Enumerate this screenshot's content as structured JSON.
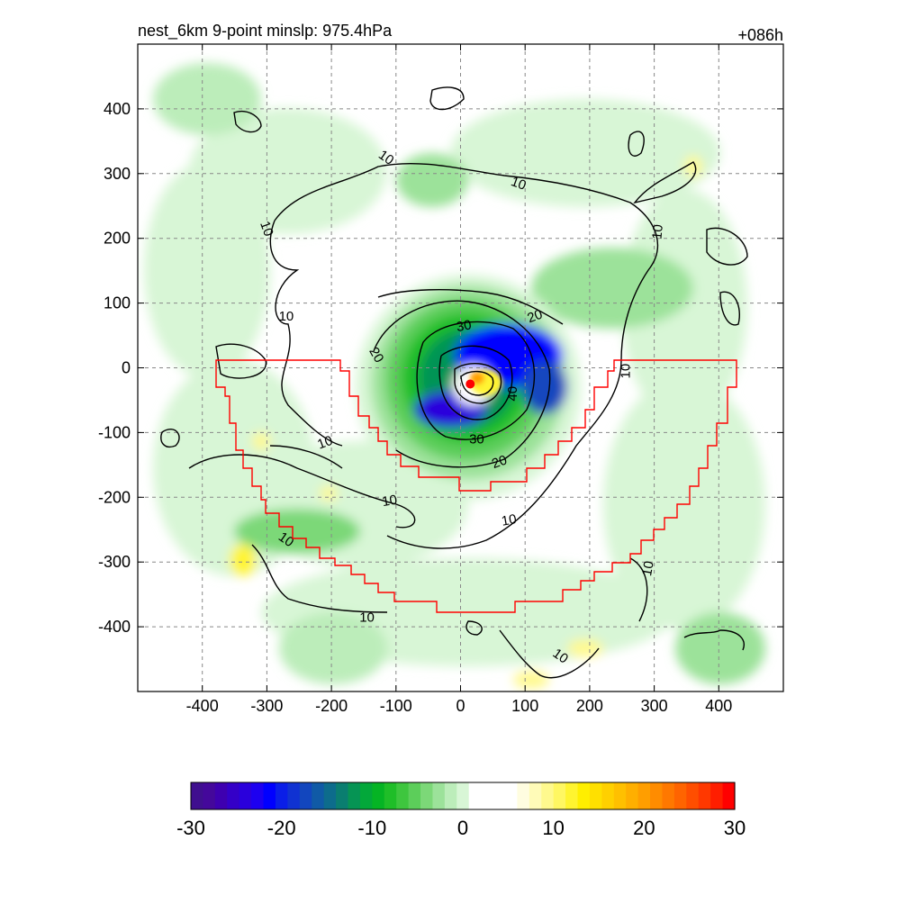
{
  "chart_data": {
    "type": "heatmap",
    "title_left": "nest_6km  9-point minslp: 975.4hPa",
    "title_right": "+086h",
    "xlim": [
      -500,
      500
    ],
    "ylim": [
      -500,
      500
    ],
    "xticks": [
      -400,
      -300,
      -200,
      -100,
      0,
      100,
      200,
      300,
      400
    ],
    "yticks": [
      -400,
      -300,
      -200,
      -100,
      0,
      100,
      200,
      300,
      400
    ],
    "grid": "on",
    "center_marker_color": "#ff0000",
    "storm_center": [
      15,
      -25
    ],
    "colorbar": {
      "min": -30,
      "max": 30,
      "ticks": [
        -30,
        -20,
        -10,
        0,
        10,
        20,
        30
      ],
      "colors": [
        "#3f0f8f",
        "#44089b",
        "#3e00b0",
        "#3400c8",
        "#2a00dc",
        "#1d00f0",
        "#0000ff",
        "#0a1ee8",
        "#1032d2",
        "#1246be",
        "#105aa6",
        "#0d6c8c",
        "#0a7e70",
        "#069454",
        "#03a83a",
        "#05b424",
        "#1fbe28",
        "#3ec63e",
        "#5cce5a",
        "#7cd878",
        "#9ce29a",
        "#bcedba",
        "#d8f6d6",
        "#ffffff",
        "#ffffff",
        "#ffffff",
        "#ffffff",
        "#fffde0",
        "#fffbb8",
        "#fff98e",
        "#fff762",
        "#fff430",
        "#ffef00",
        "#ffe000",
        "#ffd000",
        "#ffc000",
        "#ffaf00",
        "#ff9e00",
        "#ff8c00",
        "#ff7800",
        "#ff6400",
        "#ff4e00",
        "#ff3800",
        "#ff1e00",
        "#ff0000"
      ]
    },
    "contour_labels": [
      {
        "text": "10",
        "x": -115,
        "y": 325,
        "rot": -35
      },
      {
        "text": "10",
        "x": 90,
        "y": 285,
        "rot": -20
      },
      {
        "text": "10",
        "x": -300,
        "y": 215,
        "rot": -70
      },
      {
        "text": "10",
        "x": 305,
        "y": 210,
        "rot": 85
      },
      {
        "text": "10",
        "x": -270,
        "y": 80,
        "rot": 0
      },
      {
        "text": "20",
        "x": 115,
        "y": 80,
        "rot": 20
      },
      {
        "text": "30",
        "x": 5,
        "y": 65,
        "rot": 10
      },
      {
        "text": "20",
        "x": -130,
        "y": 20,
        "rot": -60
      },
      {
        "text": "10",
        "x": 255,
        "y": -5,
        "rot": 90
      },
      {
        "text": "40",
        "x": 80,
        "y": -40,
        "rot": 90
      },
      {
        "text": "30",
        "x": 25,
        "y": -110,
        "rot": 0
      },
      {
        "text": "10",
        "x": -210,
        "y": -115,
        "rot": 20
      },
      {
        "text": "20",
        "x": 60,
        "y": -145,
        "rot": 20
      },
      {
        "text": "10",
        "x": -110,
        "y": -205,
        "rot": 10
      },
      {
        "text": "10",
        "x": 75,
        "y": -235,
        "rot": 10
      },
      {
        "text": "10",
        "x": -270,
        "y": -265,
        "rot": -35
      },
      {
        "text": "10",
        "x": 290,
        "y": -310,
        "rot": 80
      },
      {
        "text": "10",
        "x": -145,
        "y": -385,
        "rot": 0
      },
      {
        "text": "10",
        "x": 155,
        "y": -445,
        "rot": -35
      }
    ]
  }
}
